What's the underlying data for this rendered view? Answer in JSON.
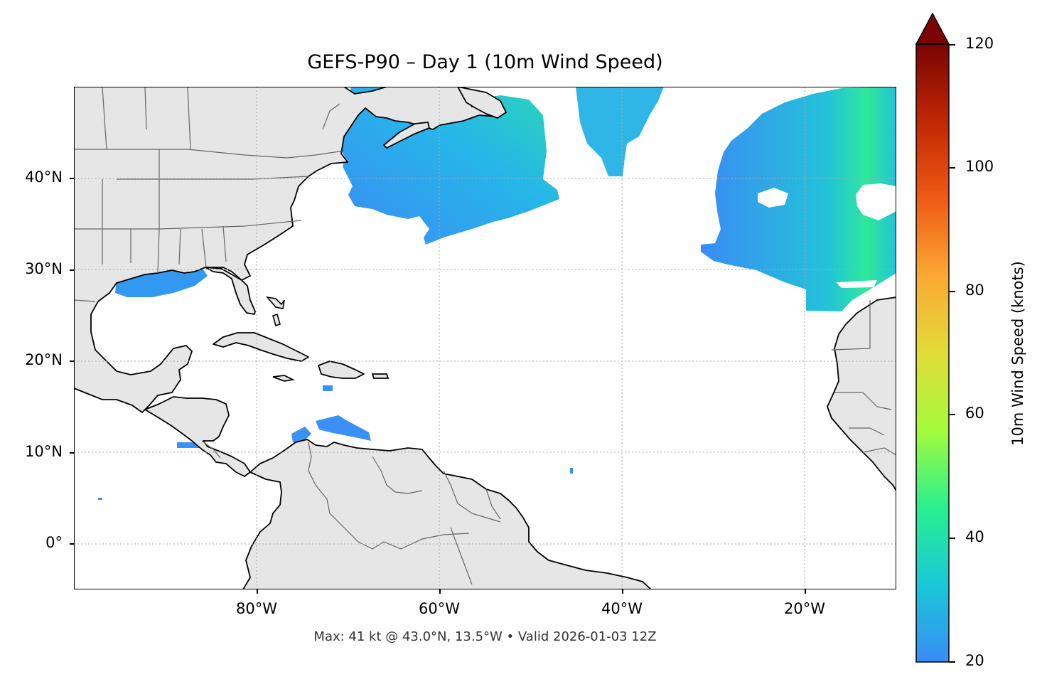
{
  "title": "GEFS-P90 – Day 1 (10m Wind Speed)",
  "footer": "Max: 41 kt @ 43.0°N, 13.5°W • Valid 2026-01-03 12Z",
  "map": {
    "extent": {
      "lon_min": -100,
      "lon_max": -10,
      "lat_min": -5,
      "lat_max": 50
    },
    "lat_ticks": [
      {
        "value": 40,
        "label": "40°N"
      },
      {
        "value": 30,
        "label": "30°N"
      },
      {
        "value": 20,
        "label": "20°N"
      },
      {
        "value": 10,
        "label": "10°N"
      },
      {
        "value": 0,
        "label": "0°"
      }
    ],
    "lon_ticks": [
      {
        "value": -80,
        "label": "80°W"
      },
      {
        "value": -60,
        "label": "60°W"
      },
      {
        "value": -40,
        "label": "40°W"
      },
      {
        "value": -20,
        "label": "20°W"
      }
    ],
    "land_color": "#e6e6e6",
    "coast_color": "#000000",
    "border_color": "#666666",
    "gridline_color": "#aaaaaa",
    "gridlines": true
  },
  "colorbar": {
    "label": "10m Wind Speed (knots)",
    "min": 20,
    "max": 120,
    "extend": "max",
    "ticks": [
      "20",
      "40",
      "60",
      "80",
      "100",
      "120"
    ],
    "colormap": [
      "#3a8cf5",
      "#1ac8d8",
      "#28f08e",
      "#a4fb3c",
      "#e2dc38",
      "#fba834",
      "#ef5a14",
      "#c02704",
      "#7a0403"
    ]
  },
  "wind_regions": [
    {
      "name": "north-atlantic-west",
      "peak_kt": 35
    },
    {
      "name": "north-atlantic-central",
      "peak_kt": 30
    },
    {
      "name": "north-atlantic-east",
      "peak_kt": 41
    },
    {
      "name": "gulf-of-mexico",
      "peak_kt": 24
    },
    {
      "name": "caribbean",
      "peak_kt": 22
    }
  ]
}
